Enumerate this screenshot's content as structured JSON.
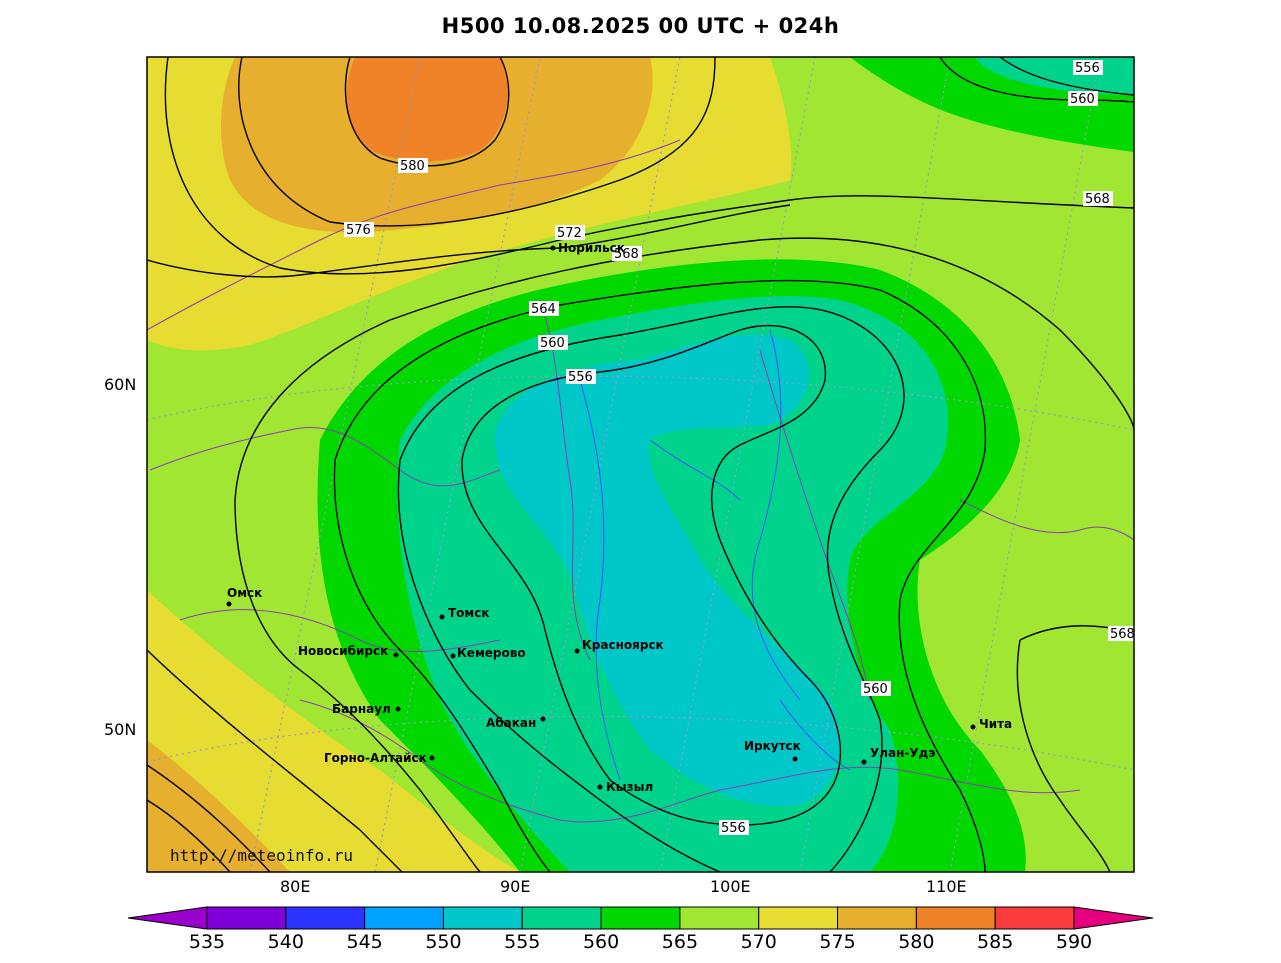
{
  "title": "H500  10.08.2025 00 UTC + 024h",
  "watermark": "http://meteoinfo.ru",
  "axes": {
    "lon_labels": [
      "80E",
      "90E",
      "100E",
      "110E"
    ],
    "lat_labels": [
      "60N",
      "50N"
    ]
  },
  "contour_labels": [
    "556",
    "560",
    "568",
    "580",
    "576",
    "572",
    "568",
    "564",
    "560",
    "556",
    "568",
    "560",
    "556"
  ],
  "cities": [
    "Норильск",
    "Омск",
    "Томск",
    "Новосибирск",
    "Кемерово",
    "Красноярск",
    "Барнаул",
    "Абакан",
    "Горно-Алтайск",
    "Кызыл",
    "Иркутск",
    "Улан-Удэ",
    "Чита"
  ],
  "colorbar": {
    "ticks": [
      "535",
      "540",
      "545",
      "550",
      "555",
      "560",
      "565",
      "570",
      "575",
      "580",
      "585",
      "590"
    ],
    "colors": [
      "#7f00d8",
      "#2b33ff",
      "#00a2ff",
      "#00c8c8",
      "#00d48c",
      "#00d800",
      "#a0e632",
      "#e6dc32",
      "#e6af2d",
      "#f08228",
      "#fa3c3c"
    ],
    "low_color": "#9900cc",
    "high_color": "#e6007f"
  },
  "colors": {
    "bg_570": "#a0e632",
    "c575": "#e6dc32",
    "c580": "#e6af2d",
    "c585": "#f08228",
    "c565": "#00d800",
    "c560": "#00d48c",
    "c555": "#00c8c8",
    "border": "#8c3cb4",
    "rivers": "#4646ff",
    "grid": "#9a9acd"
  }
}
